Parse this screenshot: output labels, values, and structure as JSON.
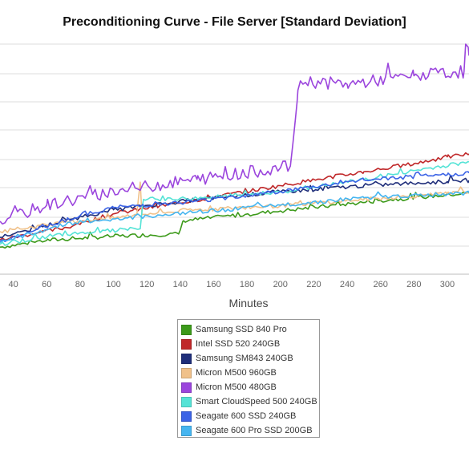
{
  "chart_data": {
    "type": "line",
    "title": "Preconditioning Curve - File Server [Standard Deviation]",
    "xlabel": "Minutes",
    "ylabel": "",
    "xlim": [
      32,
      313
    ],
    "ylim": [
      0,
      40
    ],
    "x_ticks": [
      40,
      60,
      80,
      100,
      120,
      140,
      160,
      180,
      200,
      220,
      240,
      260,
      280,
      300
    ],
    "grid": "horizontal",
    "legend_position": "bottom-center",
    "series": [
      {
        "name": "Samsung SSD 840 Pro",
        "color": "#3c9a1a",
        "points": [
          [
            32,
            4.7
          ],
          [
            60,
            5.9
          ],
          [
            100,
            6.6
          ],
          [
            139,
            7.0
          ],
          [
            142,
            9.3
          ],
          [
            200,
            11.0
          ],
          [
            260,
            12.8
          ],
          [
            313,
            14.1
          ]
        ]
      },
      {
        "name": "Intel SSD 520 240GB",
        "color": "#c0282a",
        "points": [
          [
            32,
            6.0
          ],
          [
            70,
            8.0
          ],
          [
            100,
            10.5
          ],
          [
            150,
            12.9
          ],
          [
            200,
            15.4
          ],
          [
            250,
            17.8
          ],
          [
            280,
            19.2
          ],
          [
            300,
            20.4
          ],
          [
            313,
            20.9
          ]
        ]
      },
      {
        "name": "Samsung SM843 240GB",
        "color": "#1f2e7a",
        "points": [
          [
            32,
            6.4
          ],
          [
            72,
            9.4
          ],
          [
            100,
            11.2
          ],
          [
            150,
            13.0
          ],
          [
            200,
            14.3
          ],
          [
            250,
            15.4
          ],
          [
            300,
            16.1
          ],
          [
            313,
            16.3
          ]
        ]
      },
      {
        "name": "Micron M500 960GB",
        "color": "#f0c18a",
        "points": [
          [
            32,
            7.4
          ],
          [
            70,
            9.0
          ],
          [
            100,
            9.8
          ],
          [
            114,
            10.3
          ],
          [
            116,
            16.0
          ],
          [
            117,
            10.4
          ],
          [
            150,
            11.2
          ],
          [
            200,
            11.9
          ],
          [
            250,
            13.0
          ],
          [
            300,
            14.0
          ],
          [
            313,
            14.4
          ]
        ]
      },
      {
        "name": "Micron M500 480GB",
        "color": "#9b45dd",
        "points": [
          [
            32,
            9.2
          ],
          [
            60,
            12.0
          ],
          [
            100,
            14.4
          ],
          [
            150,
            16.5
          ],
          [
            200,
            18.5
          ],
          [
            206,
            18.8
          ],
          [
            210,
            30.0
          ],
          [
            212,
            33.6
          ],
          [
            240,
            33.0
          ],
          [
            280,
            34.5
          ],
          [
            310,
            35.2
          ],
          [
            311,
            40.0
          ],
          [
            313,
            38.0
          ]
        ]
      },
      {
        "name": "Smart CloudSpeed 500 240GB",
        "color": "#55e3d6",
        "points": [
          [
            32,
            5.2
          ],
          [
            70,
            7.0
          ],
          [
            116,
            7.9
          ],
          [
            118,
            13.0
          ],
          [
            150,
            13.2
          ],
          [
            200,
            14.3
          ],
          [
            250,
            16.4
          ],
          [
            290,
            18.5
          ],
          [
            313,
            19.5
          ]
        ]
      },
      {
        "name": "Seagate 600 SSD 240GB",
        "color": "#3b63e6",
        "points": [
          [
            32,
            5.7
          ],
          [
            72,
            9.5
          ],
          [
            100,
            11.6
          ],
          [
            150,
            12.7
          ],
          [
            200,
            14.4
          ],
          [
            250,
            16.4
          ],
          [
            300,
            17.3
          ],
          [
            313,
            17.6
          ]
        ]
      },
      {
        "name": "Seagate 600 Pro SSD 200GB",
        "color": "#45b5f0",
        "points": [
          [
            32,
            5.5
          ],
          [
            72,
            8.8
          ],
          [
            100,
            9.6
          ],
          [
            150,
            10.8
          ],
          [
            200,
            12.0
          ],
          [
            250,
            13.3
          ],
          [
            300,
            13.9
          ],
          [
            313,
            14.1
          ]
        ]
      }
    ]
  }
}
